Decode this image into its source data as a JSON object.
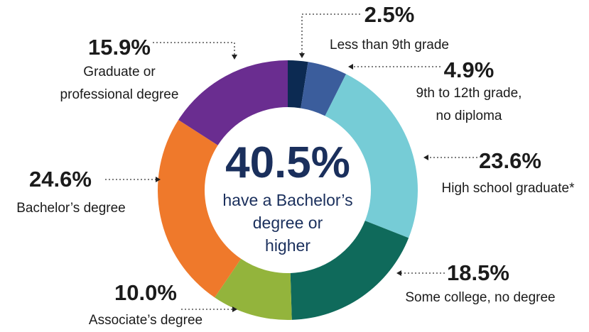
{
  "chart_data": {
    "type": "donut",
    "categories": [
      "Less than 9th grade",
      "9th to 12th grade, no diploma",
      "High school graduate*",
      "Some college, no degree",
      "Associate’s degree",
      "Bachelor’s degree",
      "Graduate or professional degree"
    ],
    "values": [
      2.5,
      4.9,
      23.6,
      18.5,
      10.0,
      24.6,
      15.9
    ],
    "value_labels": [
      "2.5%",
      "4.9%",
      "23.6%",
      "18.5%",
      "10.0%",
      "24.6%",
      "15.9%"
    ],
    "colors": [
      "#0c2a52",
      "#3b5d9c",
      "#76ccd6",
      "#0f6a5b",
      "#93b43c",
      "#ef792b",
      "#6a2d90"
    ],
    "center_value": 40.5,
    "center_value_label": "40.5%",
    "center_text_lines": [
      "have a Bachelor’s",
      "degree or",
      "higher"
    ]
  }
}
